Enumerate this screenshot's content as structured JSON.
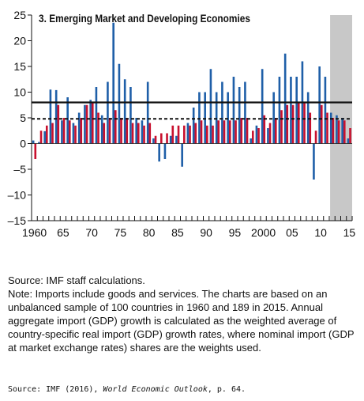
{
  "chart_data": {
    "type": "bar",
    "title": "3. Emerging Market and Developing Economies",
    "ylim": [
      -15,
      25
    ],
    "yticks": [
      -15,
      -10,
      -5,
      0,
      5,
      10,
      15,
      20,
      25
    ],
    "ytick_labels": [
      "–15",
      "–10",
      "–5",
      "0",
      "5",
      "10",
      "15",
      "20",
      "25"
    ],
    "xticks": [
      1960,
      1965,
      1970,
      1975,
      1980,
      1985,
      1990,
      1995,
      2000,
      2005,
      2010,
      2015
    ],
    "xtick_labels": [
      "1960",
      "65",
      "70",
      "75",
      "80",
      "85",
      "90",
      "95",
      "2000",
      "05",
      "10",
      "15"
    ],
    "grid": false,
    "legend": "none",
    "projection_shading_from": 2012,
    "categories": [
      1960,
      1961,
      1962,
      1963,
      1964,
      1965,
      1966,
      1967,
      1968,
      1969,
      1970,
      1971,
      1972,
      1973,
      1974,
      1975,
      1976,
      1977,
      1978,
      1979,
      1980,
      1981,
      1982,
      1983,
      1984,
      1985,
      1986,
      1987,
      1988,
      1989,
      1990,
      1991,
      1992,
      1993,
      1994,
      1995,
      1996,
      1997,
      1998,
      1999,
      2000,
      2001,
      2002,
      2003,
      2004,
      2005,
      2006,
      2007,
      2008,
      2009,
      2010,
      2011,
      2012,
      2013,
      2014,
      2015
    ],
    "series": [
      {
        "color": "#1f5fa8",
        "values": [
          0.6,
          0.3,
          2.4,
          10.5,
          10.4,
          4.5,
          9.0,
          4.0,
          6.0,
          7.5,
          8.5,
          11.0,
          5.5,
          12.0,
          23.5,
          15.5,
          12.5,
          11.0,
          5.0,
          4.5,
          12.0,
          1.0,
          -3.5,
          -3.0,
          1.5,
          1.5,
          -4.5,
          4.0,
          7.0,
          10.0,
          10.0,
          14.5,
          10.0,
          12.0,
          10.0,
          13.0,
          11.0,
          12.0,
          1.0,
          3.5,
          14.5,
          3.0,
          10.0,
          13.0,
          17.5,
          13.0,
          13.0,
          16.0,
          10.0,
          -7.0,
          15.0,
          13.0,
          6.0,
          5.5,
          5.0,
          1.0
        ]
      },
      {
        "color": "#c8102e",
        "values": [
          -3.0,
          2.5,
          3.5,
          4.0,
          7.5,
          5.0,
          4.5,
          3.5,
          5.0,
          7.5,
          8.0,
          6.0,
          4.0,
          5.0,
          6.5,
          5.0,
          5.0,
          4.0,
          4.0,
          3.5,
          4.0,
          1.5,
          2.0,
          2.0,
          3.5,
          3.5,
          3.5,
          3.5,
          4.0,
          4.5,
          3.5,
          3.5,
          4.5,
          4.5,
          4.5,
          4.5,
          5.0,
          5.0,
          2.5,
          3.0,
          5.5,
          4.0,
          5.0,
          6.5,
          7.5,
          7.5,
          8.0,
          8.0,
          6.0,
          2.5,
          7.5,
          6.0,
          5.0,
          4.5,
          4.5,
          3.0
        ]
      }
    ],
    "reference_lines": [
      {
        "style": "solid",
        "value": 8.0
      },
      {
        "style": "dashed",
        "value": 4.8
      }
    ]
  },
  "notes": {
    "source": "Source: IMF staff calculations.",
    "note": "Note: Imports include goods and services. The charts are based on an unbalanced sample of 100 countries in 1960 and 189 in 2015. Annual aggregate import (GDP) growth is calculated as the weighted average of country-specific real import (GDP) growth rates, where nominal import (GDP at market exchange rates) shares are the weights used."
  },
  "citation": {
    "prefix": "Source: IMF (2016), ",
    "title": "World Economic Outlook",
    "suffix": ", p. 64."
  }
}
